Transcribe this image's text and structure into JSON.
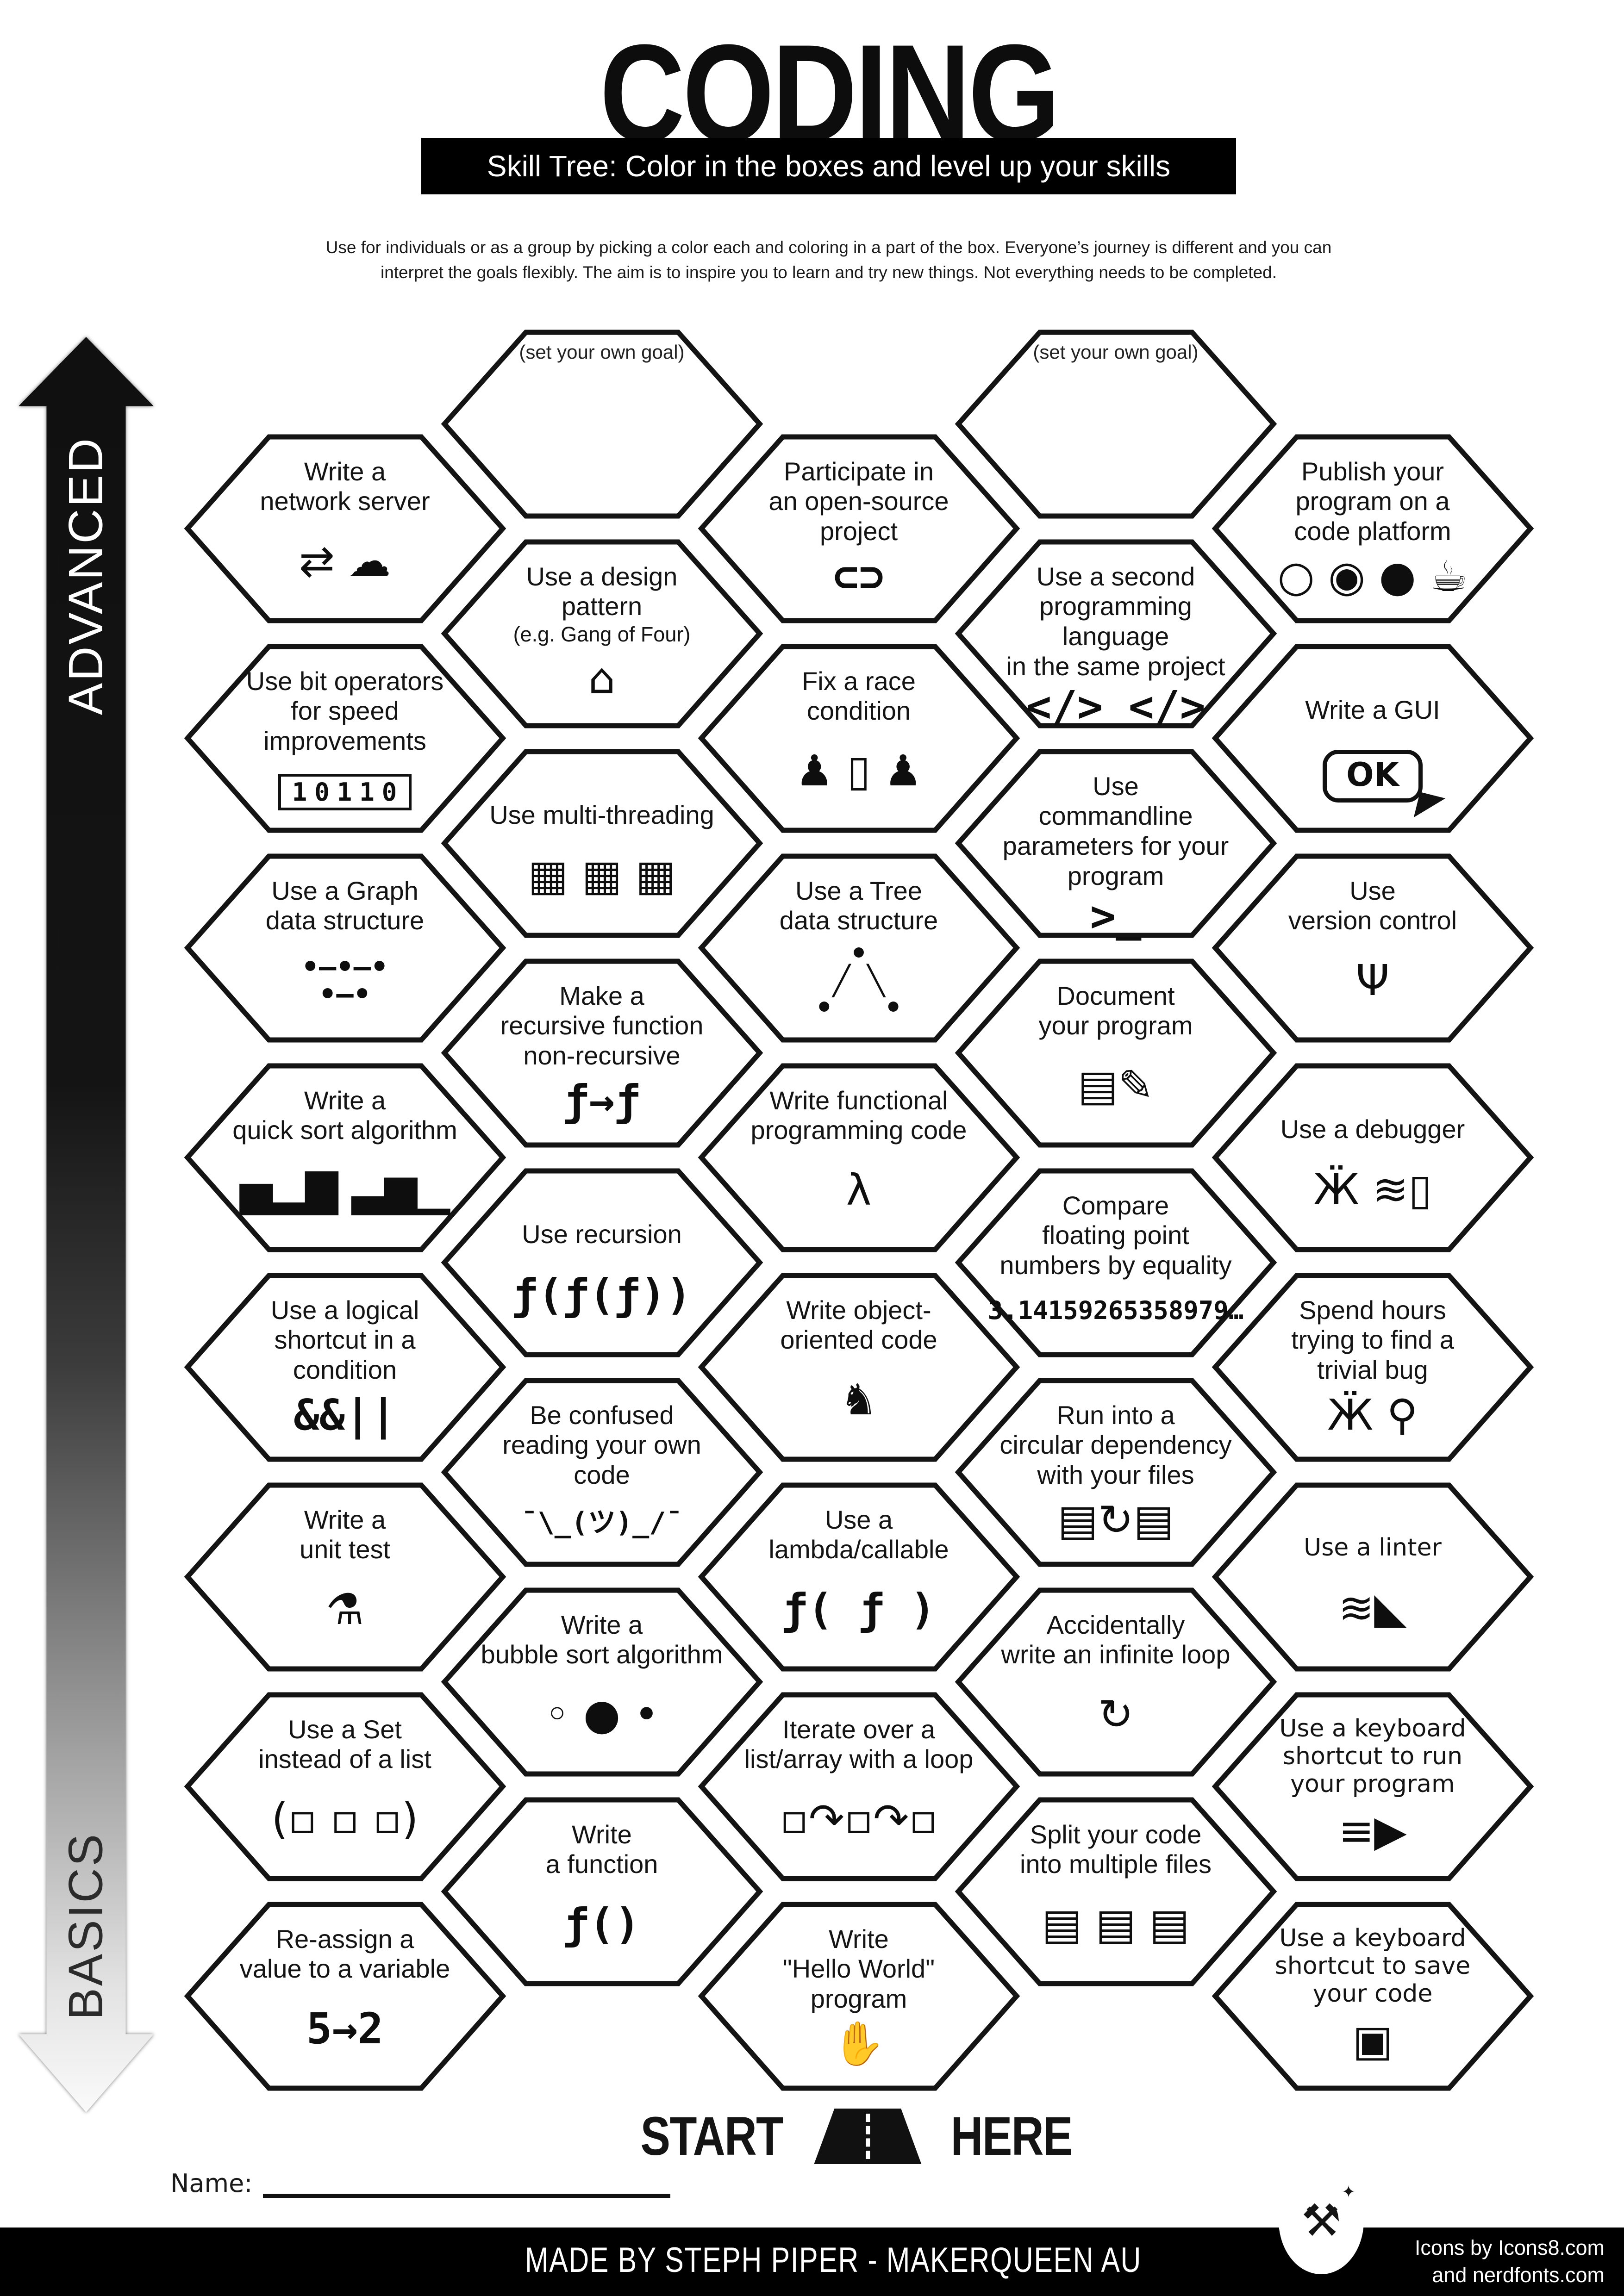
{
  "title": "CODING",
  "subtitle_bar": "Skill Tree:  Color in the boxes and level up your skills",
  "description_line1": "Use for individuals or as a group by picking a color each and coloring in a part of the box.  Everyone’s journey is different and you can",
  "description_line2": "interpret the goals flexibly.  The aim is to inspire you to learn and try new things. Not everything needs to be completed.",
  "axis": {
    "top_label": "ADVANCED",
    "bottom_label": "BASICS"
  },
  "start_here": {
    "start": "START",
    "here": "HERE"
  },
  "name_label": "Name:",
  "footer": {
    "credit": "MADE BY STEPH PIPER  -  MAKERQUEEN AU",
    "icons_credit_line1": "Icons by Icons8.com",
    "icons_credit_line2": "and nerdfonts.com",
    "badge_glyph": "⚒"
  },
  "colors": {
    "ink": "#151515",
    "paper": "#ffffff",
    "bar_bg": "#000000",
    "footer_bg": "#000000"
  },
  "hexes": [
    {
      "id": "goal-1",
      "col": 1,
      "row": 0,
      "goal": true,
      "label": "(set your own goal)",
      "icon": "",
      "glyph": ""
    },
    {
      "id": "goal-2",
      "col": 3,
      "row": 0,
      "goal": true,
      "label": "(set your own goal)",
      "icon": "",
      "glyph": ""
    },
    {
      "id": "write-network-server",
      "col": 0,
      "row": 0,
      "label": "Write a\nnetwork server",
      "icon": "plug-cloud-icon",
      "glyph": "⇄ ☁"
    },
    {
      "id": "open-source-project",
      "col": 2,
      "row": 0,
      "label": "Participate in\nan open-source\nproject",
      "icon": "handshake-icon",
      "glyph": "⊂⊃",
      "style": "mono"
    },
    {
      "id": "publish-code-platform",
      "col": 4,
      "row": 0,
      "label": "Publish your\nprogram on a\ncode platform",
      "icon": "code-platforms-icon",
      "glyph": "○ ◉ ● ☕"
    },
    {
      "id": "design-pattern",
      "col": 1,
      "row": 1,
      "label": "Use a design\npattern",
      "note": "(e.g. Gang of Four)",
      "icon": "factory-icon",
      "glyph": "⌂"
    },
    {
      "id": "second-language",
      "col": 3,
      "row": 1,
      "label": "Use a second\nprogramming language\nin the same project",
      "icon": "two-languages-icon",
      "glyph": "</> </>",
      "style": "mono"
    },
    {
      "id": "bit-operators",
      "col": 0,
      "row": 1,
      "label": "Use bit operators\nfor speed improvements",
      "icon": "binary-bits-icon",
      "glyph": "10110",
      "style": "bits"
    },
    {
      "id": "race-condition",
      "col": 2,
      "row": 1,
      "label": "Fix a race\ncondition",
      "icon": "race-door-icon",
      "glyph": "♟ ▯ ♟"
    },
    {
      "id": "write-gui",
      "col": 4,
      "row": 1,
      "label": "Write a GUI",
      "icon": "ok-button-cursor-icon",
      "glyph": "OK",
      "style": "ok"
    },
    {
      "id": "multi-threading",
      "col": 1,
      "row": 2,
      "label": "Use multi-threading",
      "icon": "cpu-chips-icon",
      "glyph": "▦ ▦ ▦"
    },
    {
      "id": "commandline-params",
      "col": 3,
      "row": 2,
      "label": "Use\ncommandline\nparameters for your\nprogram",
      "icon": "terminal-prompt-icon",
      "glyph": ">_",
      "style": "mono"
    },
    {
      "id": "graph-structure",
      "col": 0,
      "row": 2,
      "label": "Use a Graph\ndata structure",
      "icon": "graph-nodes-icon",
      "glyph": "•–•–•\n•–•",
      "style": "pre"
    },
    {
      "id": "tree-structure",
      "col": 2,
      "row": 2,
      "label": "Use a Tree\ndata structure",
      "icon": "tree-nodes-icon",
      "glyph": "•\n╱ ╲\n•   •",
      "style": "pre"
    },
    {
      "id": "version-control",
      "col": 4,
      "row": 2,
      "label": "Use\nversion control",
      "icon": "git-branch-icon",
      "glyph": "Ψ"
    },
    {
      "id": "recursive-to-nonrecursive",
      "col": 1,
      "row": 3,
      "label": "Make a\nrecursive function\nnon-recursive",
      "icon": "function-papers-icon",
      "glyph": "ƒ→ƒ",
      "style": "mono"
    },
    {
      "id": "document-program",
      "col": 3,
      "row": 3,
      "label": "Document\nyour program",
      "icon": "document-pencil-icon",
      "glyph": "▤✎"
    },
    {
      "id": "quick-sort",
      "col": 0,
      "row": 3,
      "label": "Write a\nquick sort algorithm",
      "icon": "bar-chart-icon",
      "glyph": "▅▂▇ ▃▆▁"
    },
    {
      "id": "functional-code",
      "col": 2,
      "row": 3,
      "label": "Write functional\nprogramming code",
      "icon": "lambda-icon",
      "glyph": "λ"
    },
    {
      "id": "use-debugger",
      "col": 4,
      "row": 3,
      "label": "Use a debugger",
      "icon": "bug-spray-icon",
      "glyph": "Ӝ ≋▯"
    },
    {
      "id": "use-recursion",
      "col": 1,
      "row": 4,
      "label": "Use recursion",
      "icon": "nested-function-icon",
      "glyph": "ƒ(ƒ(ƒ))",
      "style": "mono"
    },
    {
      "id": "floating-point-equality",
      "col": 3,
      "row": 4,
      "label": "Compare\nfloating point\nnumbers by equality",
      "icon": "pi-digits-icon",
      "glyph": "3.14159265358979…",
      "style": "pi"
    },
    {
      "id": "logical-shortcut",
      "col": 0,
      "row": 4,
      "label": "Use a logical\nshortcut in a\ncondition",
      "icon": "logical-operators-icon",
      "glyph": "&&||",
      "style": "mono"
    },
    {
      "id": "object-oriented",
      "col": 2,
      "row": 4,
      "label": "Write object-\noriented code",
      "icon": "rubber-duck-icon",
      "glyph": "♞"
    },
    {
      "id": "trivial-bug",
      "col": 4,
      "row": 4,
      "label": "Spend hours\ntrying to find a\ntrivial bug",
      "icon": "bug-magnifier-icon",
      "glyph": "Ӝ ⚲"
    },
    {
      "id": "confused-own-code",
      "col": 1,
      "row": 5,
      "label": "Be confused\nreading your own\ncode",
      "icon": "shrug-icon",
      "glyph": "¯\\_(ツ)_/¯",
      "style": "shrug"
    },
    {
      "id": "circular-dependency",
      "col": 3,
      "row": 5,
      "label": "Run into a\ncircular dependency\nwith your files",
      "icon": "circular-files-icon",
      "glyph": "▤↻▤"
    },
    {
      "id": "unit-test",
      "col": 0,
      "row": 5,
      "label": "Write a\nunit test",
      "icon": "test-tube-icon",
      "glyph": "⚗"
    },
    {
      "id": "lambda-callable",
      "col": 2,
      "row": 5,
      "label": "Use a\nlambda/callable",
      "icon": "lambda-call-icon",
      "glyph": "ƒ( ƒ )",
      "style": "mono"
    },
    {
      "id": "use-linter",
      "col": 4,
      "row": 5,
      "label": "Use a linter",
      "icon": "broom-icon",
      "glyph": "≋◣",
      "alt": true
    },
    {
      "id": "bubble-sort",
      "col": 1,
      "row": 6,
      "label": "Write a\nbubble sort algorithm",
      "icon": "bubbles-icon",
      "glyph": "◦ ● •"
    },
    {
      "id": "infinite-loop",
      "col": 3,
      "row": 6,
      "label": "Accidentally\nwrite an infinite loop",
      "icon": "infinite-loop-icon",
      "glyph": "↻"
    },
    {
      "id": "use-set",
      "col": 0,
      "row": 6,
      "label": "Use a Set\ninstead of a list",
      "icon": "set-ellipse-icon",
      "glyph": "(▫ ▫ ▫)"
    },
    {
      "id": "iterate-loop",
      "col": 2,
      "row": 6,
      "label": "Iterate over a\nlist/array with a loop",
      "icon": "loop-array-icon",
      "glyph": "▫↷▫↷▫"
    },
    {
      "id": "shortcut-run",
      "col": 4,
      "row": 6,
      "label": "Use a keyboard\nshortcut to run\nyour program",
      "icon": "runner-icon",
      "glyph": "≡▶",
      "alt": true
    },
    {
      "id": "write-function",
      "col": 1,
      "row": 7,
      "label": "Write\na function",
      "icon": "function-icon",
      "glyph": "ƒ()",
      "style": "mono"
    },
    {
      "id": "split-files",
      "col": 3,
      "row": 7,
      "label": "Split your code\ninto multiple files",
      "icon": "multiple-files-icon",
      "glyph": "▤ ▤ ▤"
    },
    {
      "id": "reassign-variable",
      "col": 0,
      "row": 7,
      "label": "Re-assign a\nvalue to a variable",
      "icon": "reassign-value-icon",
      "glyph": "5→2",
      "style": "mono"
    },
    {
      "id": "hello-world",
      "col": 2,
      "row": 7,
      "label": "Write\n\"Hello World\"\nprogram",
      "icon": "waving-hand-icon",
      "glyph": "✋"
    },
    {
      "id": "shortcut-save",
      "col": 4,
      "row": 7,
      "label": "Use a keyboard\nshortcut to save\nyour code",
      "icon": "floppy-disk-icon",
      "glyph": "▣",
      "alt": true
    }
  ]
}
